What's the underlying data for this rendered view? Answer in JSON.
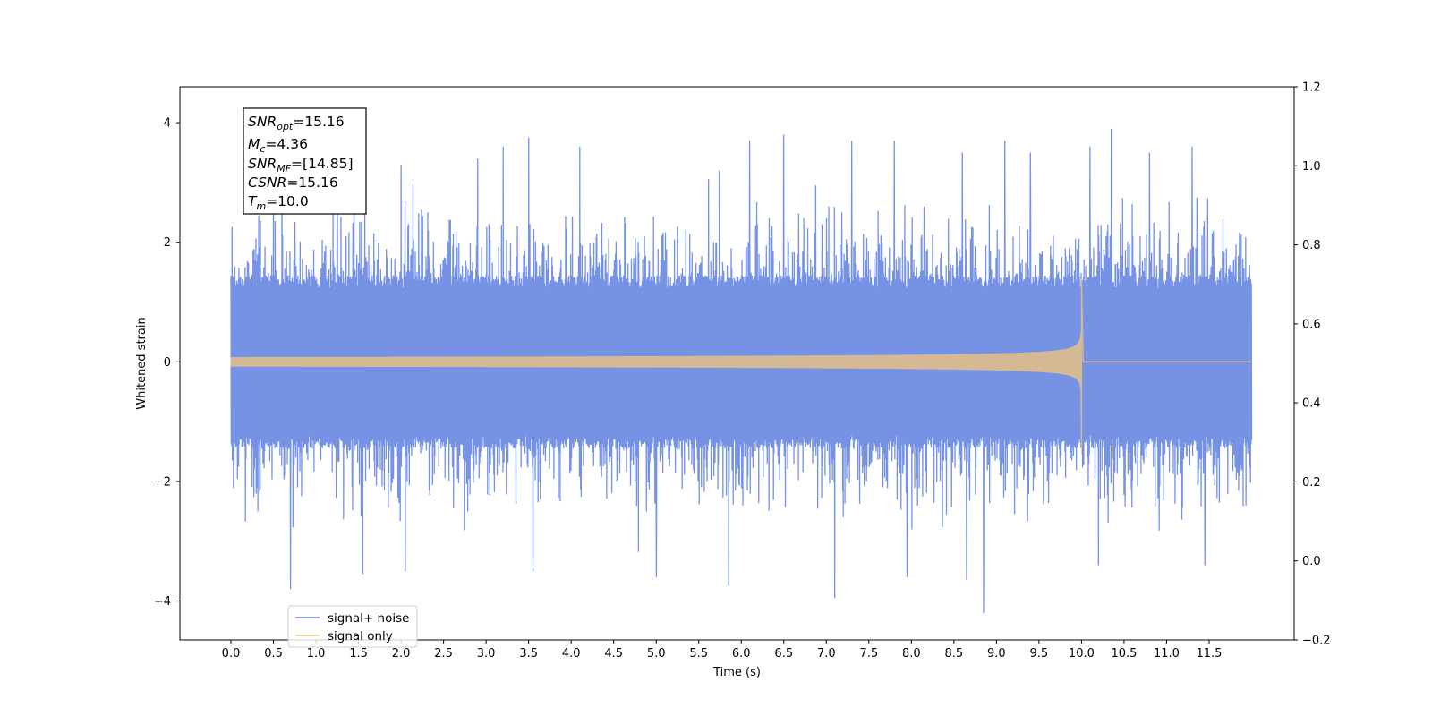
{
  "chart_data": {
    "type": "line",
    "xlabel": "Time (s)",
    "ylabel": "Whitened strain",
    "xlim": [
      -0.6,
      12.5
    ],
    "ylim": [
      -4.65,
      4.6
    ],
    "ylim_right": [
      -0.2,
      1.2
    ],
    "x_ticks": [
      "0.0",
      "0.5",
      "1.0",
      "1.5",
      "2.0",
      "2.5",
      "3.0",
      "3.5",
      "4.0",
      "4.5",
      "5.0",
      "5.5",
      "6.0",
      "6.5",
      "7.0",
      "7.5",
      "8.0",
      "8.5",
      "9.0",
      "9.5",
      "10.0",
      "10.5",
      "11.0",
      "11.5"
    ],
    "y_ticks": [
      "-4",
      "-2",
      "0",
      "2",
      "4"
    ],
    "y_ticks_right": [
      "-0.2",
      "0.0",
      "0.2",
      "0.4",
      "0.6",
      "0.8",
      "1.0",
      "1.2"
    ],
    "grid": false,
    "legend_position": "lower-left",
    "series": [
      {
        "name": "signal+ noise",
        "color": "#6f8ce4",
        "x_range": [
          0.0,
          12.0
        ],
        "core_band_abs": 1.45,
        "spike_peaks_positive": [
          [
            0.5,
            3.2
          ],
          [
            0.6,
            3.3
          ],
          [
            1.25,
            3.2
          ],
          [
            2.0,
            3.3
          ],
          [
            2.9,
            3.4
          ],
          [
            3.2,
            3.6
          ],
          [
            3.5,
            3.75
          ],
          [
            4.1,
            3.6
          ],
          [
            6.1,
            3.7
          ],
          [
            6.5,
            3.8
          ],
          [
            7.3,
            3.7
          ],
          [
            7.8,
            3.7
          ],
          [
            8.6,
            3.5
          ],
          [
            9.1,
            3.7
          ],
          [
            9.4,
            3.5
          ],
          [
            10.1,
            3.6
          ],
          [
            10.35,
            3.9
          ],
          [
            10.8,
            3.5
          ],
          [
            11.3,
            3.6
          ]
        ],
        "spike_peaks_negative": [
          [
            0.5,
            -3.9
          ],
          [
            0.7,
            -3.8
          ],
          [
            1.55,
            -3.55
          ],
          [
            2.05,
            -3.5
          ],
          [
            3.55,
            -3.5
          ],
          [
            5.0,
            -3.6
          ],
          [
            5.85,
            -3.75
          ],
          [
            7.1,
            -3.95
          ],
          [
            7.95,
            -3.6
          ],
          [
            8.65,
            -3.65
          ],
          [
            8.85,
            -4.2
          ],
          [
            10.2,
            -3.4
          ],
          [
            11.45,
            -3.4
          ]
        ]
      },
      {
        "name": "signal only",
        "color": "#f5c57a",
        "x_range": [
          0.0,
          12.0
        ],
        "merger_time": 10.0,
        "amplitude_at_start": 0.08,
        "amplitude_at_merger": 1.38,
        "min_at_merger": -1.55,
        "post_merger_value": 0.0
      }
    ],
    "annotation": {
      "lines": [
        {
          "base": "SNR",
          "sub": "opt",
          "rest": "=15.16"
        },
        {
          "base": "M",
          "sub": "c",
          "rest": "=4.36"
        },
        {
          "base": "SNR",
          "sub": "MF",
          "rest": "=[14.85]"
        },
        {
          "base": "CSNR",
          "sub": "",
          "rest": "=15.16"
        },
        {
          "base": "T",
          "sub": "m",
          "rest": "=10.0"
        }
      ]
    },
    "legend": [
      {
        "label": "signal+ noise",
        "color": "#6f8ce4"
      },
      {
        "label": "signal only",
        "color": "#f5c57a"
      }
    ]
  }
}
